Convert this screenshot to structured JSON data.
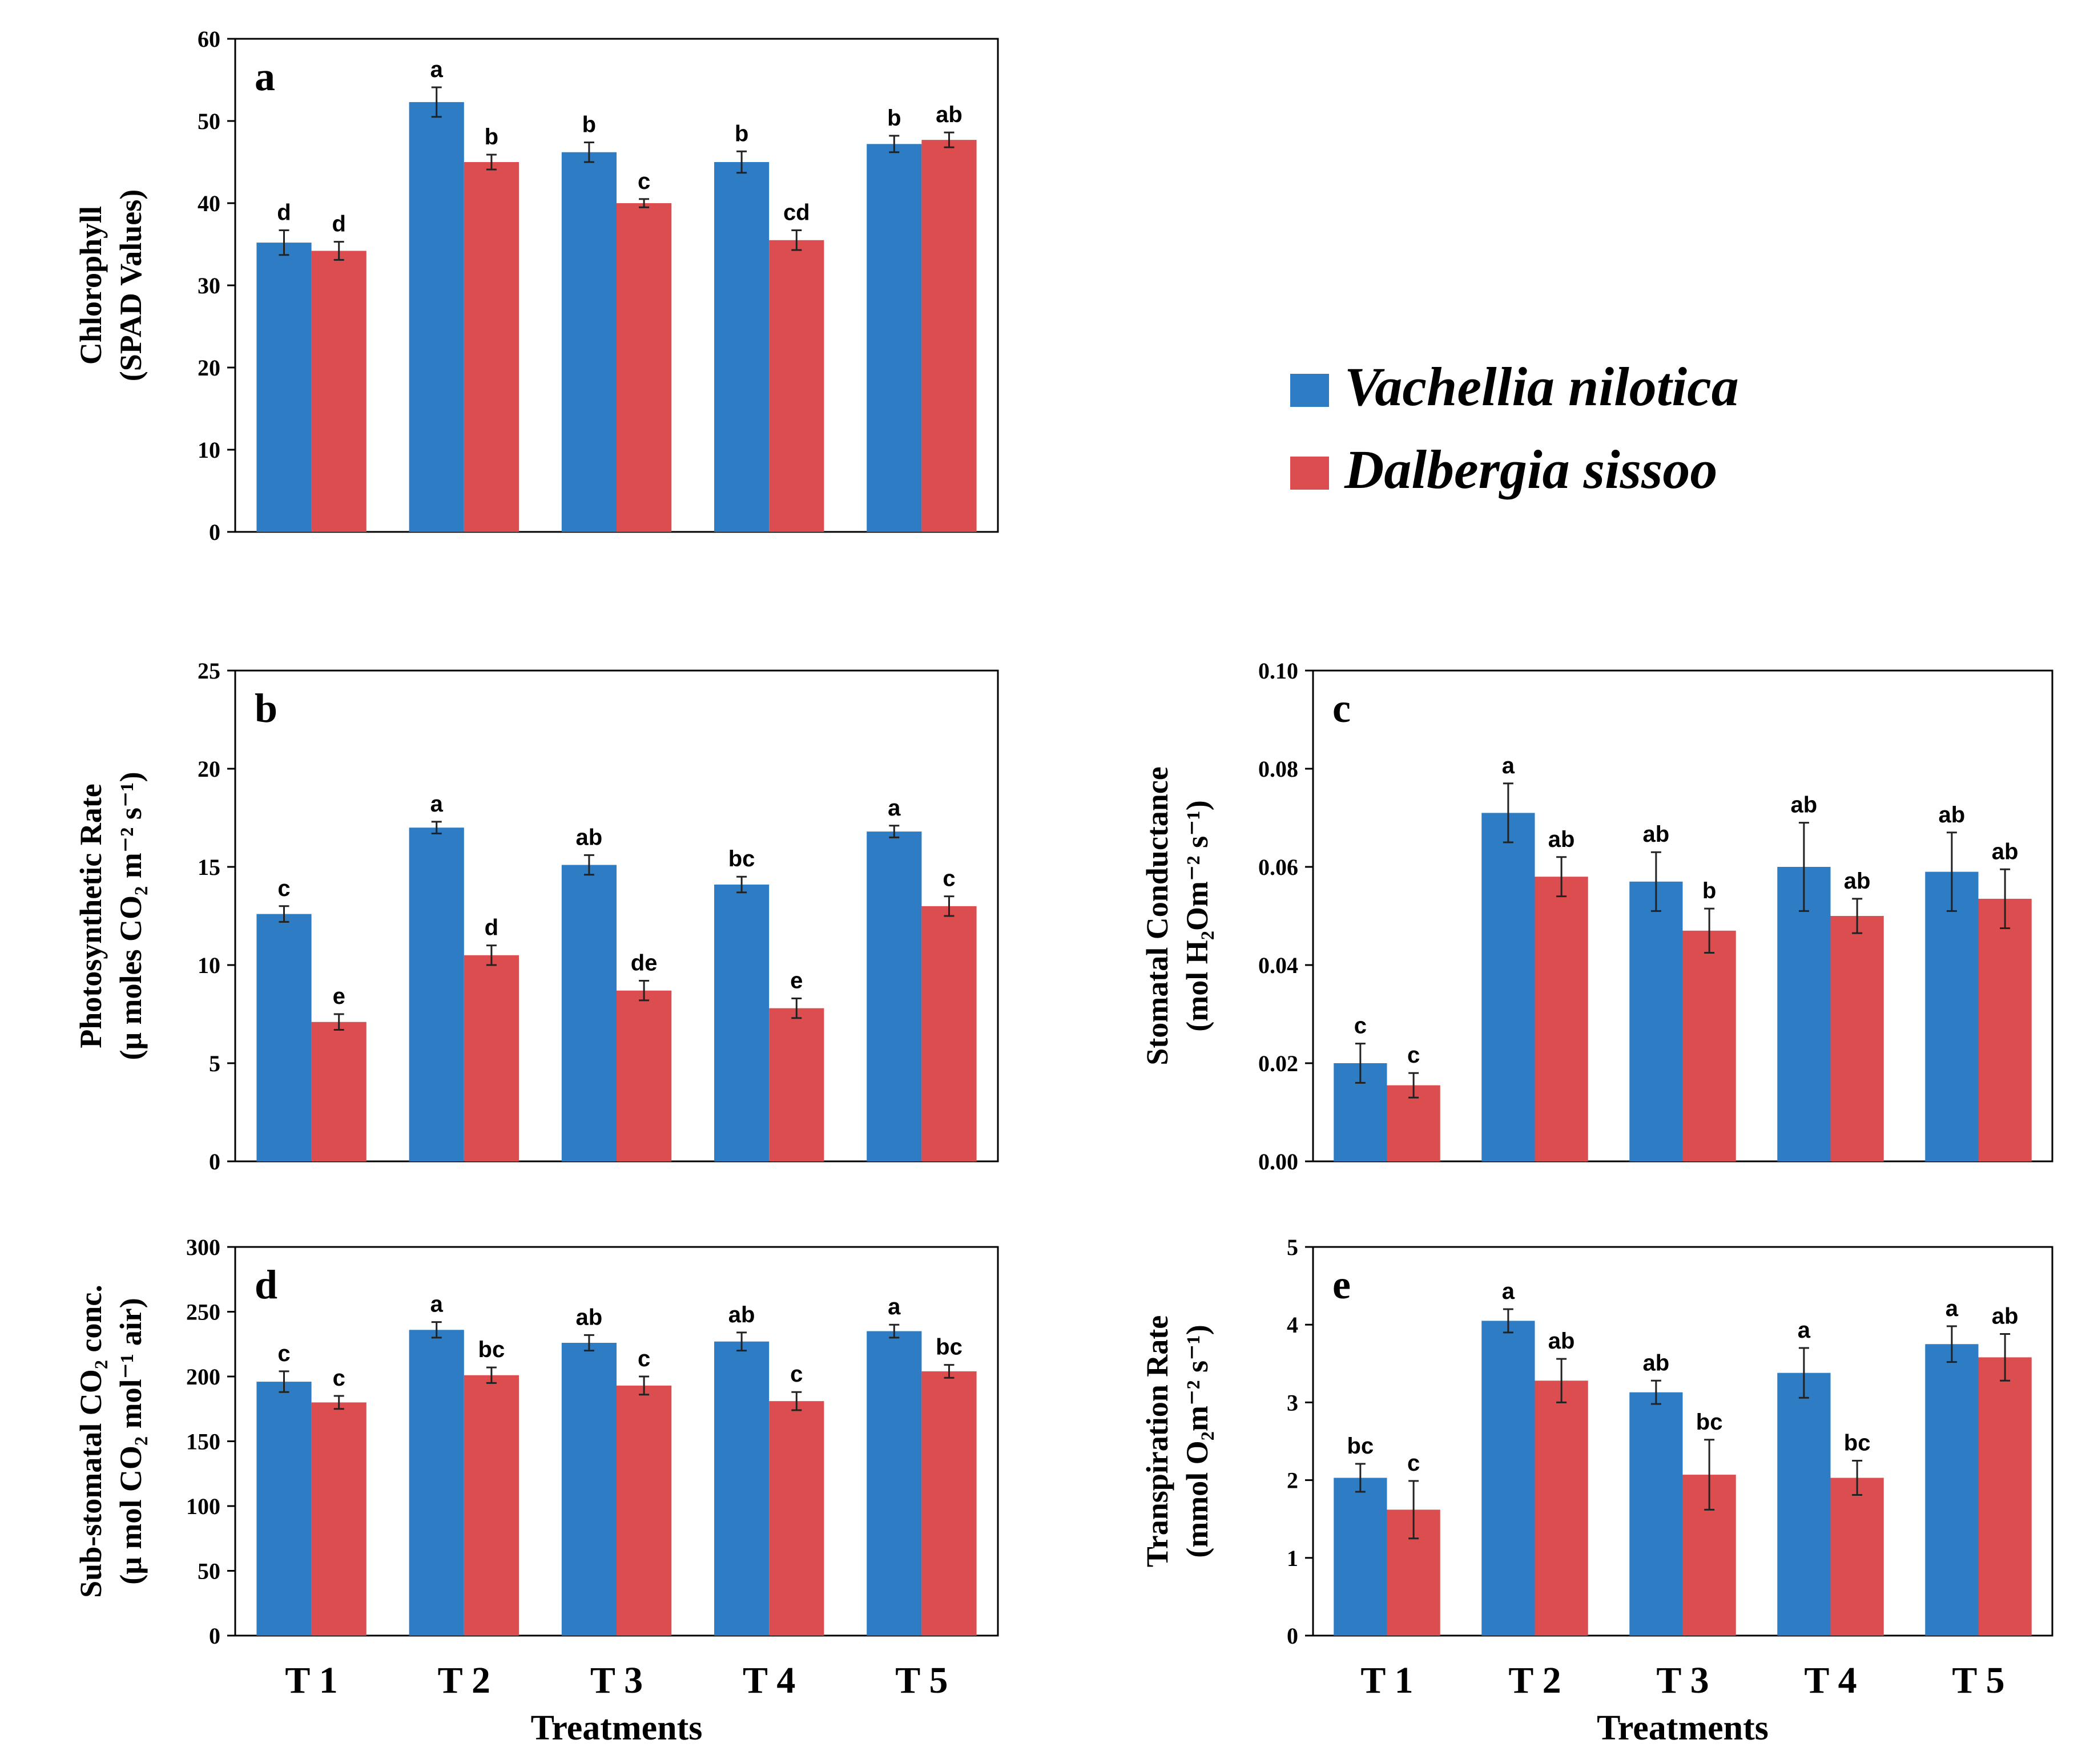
{
  "legend": {
    "items": [
      {
        "label": "Vachellia nilotica",
        "color": "#2e7dc4"
      },
      {
        "label": "Dalbergia sissoo",
        "color": "#dc4d4f"
      }
    ]
  },
  "chart_data": [
    {
      "id": "a",
      "type": "bar",
      "panel_label": "a",
      "ylabel_lines": [
        "Chlorophyll",
        "(SPAD Values)"
      ],
      "ylim": [
        0,
        60
      ],
      "yticks": [
        "0",
        "10",
        "20",
        "30",
        "40",
        "50",
        "60"
      ],
      "categories": [
        "T 1",
        "T 2",
        "T 3",
        "T 4",
        "T 5"
      ],
      "series": [
        {
          "name": "Vachellia nilotica",
          "values": [
            35.2,
            52.3,
            46.2,
            45.0,
            47.2
          ],
          "errors": [
            1.5,
            1.8,
            1.2,
            1.3,
            1.0
          ],
          "letters": [
            "d",
            "a",
            "b",
            "b",
            "b"
          ]
        },
        {
          "name": "Dalbergia sissoo",
          "values": [
            34.2,
            45.0,
            40.0,
            35.5,
            47.7
          ],
          "errors": [
            1.1,
            0.9,
            0.5,
            1.2,
            0.9
          ],
          "letters": [
            "d",
            "b",
            "c",
            "cd",
            "ab"
          ]
        }
      ],
      "xlabel": ""
    },
    {
      "id": "b",
      "type": "bar",
      "panel_label": "b",
      "ylabel_lines": [
        "Photosynthetic Rate",
        "(μ moles CO₂ m⁻² s⁻¹)"
      ],
      "ylim": [
        0,
        25
      ],
      "yticks": [
        "0",
        "5",
        "10",
        "15",
        "20",
        "25"
      ],
      "categories": [
        "T 1",
        "T 2",
        "T 3",
        "T 4",
        "T 5"
      ],
      "series": [
        {
          "name": "Vachellia nilotica",
          "values": [
            12.6,
            17.0,
            15.1,
            14.1,
            16.8
          ],
          "errors": [
            0.4,
            0.3,
            0.5,
            0.4,
            0.3
          ],
          "letters": [
            "c",
            "a",
            "ab",
            "bc",
            "a"
          ]
        },
        {
          "name": "Dalbergia sissoo",
          "values": [
            7.1,
            10.5,
            8.7,
            7.8,
            13.0
          ],
          "errors": [
            0.4,
            0.5,
            0.5,
            0.5,
            0.5
          ],
          "letters": [
            "e",
            "d",
            "de",
            "e",
            "c"
          ]
        }
      ],
      "xlabel": ""
    },
    {
      "id": "c",
      "type": "bar",
      "panel_label": "c",
      "ylabel_lines": [
        "Stomatal Conductance",
        "(mol H₂Om⁻² s⁻¹)"
      ],
      "ylim": [
        0,
        0.1
      ],
      "yticks": [
        "0.00",
        "0.02",
        "0.04",
        "0.06",
        "0.08",
        "0.10"
      ],
      "categories": [
        "T 1",
        "T 2",
        "T 3",
        "T 4",
        "T 5"
      ],
      "series": [
        {
          "name": "Vachellia nilotica",
          "values": [
            0.02,
            0.071,
            0.057,
            0.06,
            0.059
          ],
          "errors": [
            0.004,
            0.006,
            0.006,
            0.009,
            0.008
          ],
          "letters": [
            "c",
            "a",
            "ab",
            "ab",
            "ab"
          ]
        },
        {
          "name": "Dalbergia sissoo",
          "values": [
            0.0155,
            0.058,
            0.047,
            0.05,
            0.0535
          ],
          "errors": [
            0.0025,
            0.004,
            0.0045,
            0.0035,
            0.006
          ],
          "letters": [
            "c",
            "ab",
            "b",
            "ab",
            "ab"
          ]
        }
      ],
      "xlabel": ""
    },
    {
      "id": "d",
      "type": "bar",
      "panel_label": "d",
      "ylabel_lines": [
        "Sub-stomatal CO₂ conc.",
        "(μ mol CO₂ mol⁻¹ air)"
      ],
      "ylim": [
        0,
        300
      ],
      "yticks": [
        "0",
        "50",
        "100",
        "150",
        "200",
        "250",
        "300"
      ],
      "categories": [
        "T 1",
        "T 2",
        "T 3",
        "T 4",
        "T 5"
      ],
      "series": [
        {
          "name": "Vachellia nilotica",
          "values": [
            196,
            236,
            226,
            227,
            235
          ],
          "errors": [
            8,
            6,
            6,
            7,
            5
          ],
          "letters": [
            "c",
            "a",
            "ab",
            "ab",
            "a"
          ]
        },
        {
          "name": "Dalbergia sissoo",
          "values": [
            180,
            201,
            193,
            181,
            204
          ],
          "errors": [
            5,
            6,
            7,
            7,
            5
          ],
          "letters": [
            "c",
            "bc",
            "c",
            "c",
            "bc"
          ]
        }
      ],
      "xlabel": "Treatments"
    },
    {
      "id": "e",
      "type": "bar",
      "panel_label": "e",
      "ylabel_lines": [
        "Transpiration Rate",
        "(mmol O₂m⁻² s⁻¹)"
      ],
      "ylim": [
        0,
        5
      ],
      "yticks": [
        "0",
        "1",
        "2",
        "3",
        "4",
        "5"
      ],
      "categories": [
        "T 1",
        "T 2",
        "T 3",
        "T 4",
        "T 5"
      ],
      "series": [
        {
          "name": "Vachellia nilotica",
          "values": [
            2.03,
            4.05,
            3.13,
            3.38,
            3.75
          ],
          "errors": [
            0.18,
            0.15,
            0.15,
            0.32,
            0.23
          ],
          "letters": [
            "bc",
            "a",
            "ab",
            "a",
            "a"
          ]
        },
        {
          "name": "Dalbergia sissoo",
          "values": [
            1.62,
            3.28,
            2.07,
            2.03,
            3.58
          ],
          "errors": [
            0.37,
            0.28,
            0.45,
            0.22,
            0.3
          ],
          "letters": [
            "c",
            "ab",
            "bc",
            "bc",
            "ab"
          ]
        }
      ],
      "xlabel": "Treatments"
    }
  ]
}
